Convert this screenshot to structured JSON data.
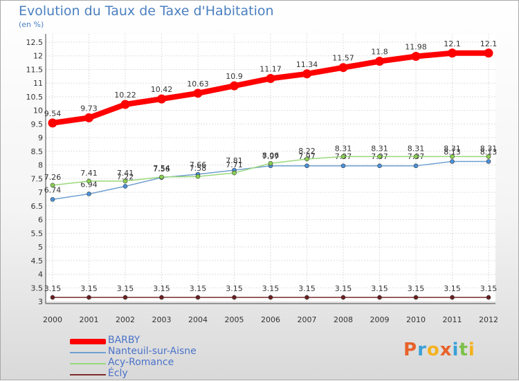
{
  "title": "Evolution du Taux de Taxe d'Habitation",
  "unit_label": "(en %)",
  "logo": {
    "letters": [
      "P",
      "r",
      "o",
      "x",
      "i",
      "t",
      "i"
    ],
    "colors": [
      "#e8622a",
      "#3aa0d8",
      "#f4b21e",
      "#e8622a",
      "#3aa0d8",
      "#7cc04a",
      "#f4b21e"
    ]
  },
  "chart_data": {
    "type": "line",
    "title": "Evolution du Taux de Taxe d'Habitation",
    "ylabel": "(en %)",
    "xlabel": "",
    "x": [
      "2000",
      "2001",
      "2002",
      "2003",
      "2004",
      "2005",
      "2006",
      "2007",
      "2008",
      "2009",
      "2010",
      "2011",
      "2012"
    ],
    "ylim": [
      3,
      12.5
    ],
    "yticks": [
      "3",
      "3.5",
      "4",
      "4.5",
      "5",
      "5.5",
      "6",
      "6.5",
      "7",
      "7.5",
      "8",
      "8.5",
      "9",
      "9.5",
      "10",
      "10.5",
      "11",
      "11.5",
      "12",
      "12.5"
    ],
    "grid": true,
    "legend_position": "bottom-left",
    "series": [
      {
        "name": "BARBY",
        "color": "#ff0000",
        "values": [
          9.54,
          9.73,
          10.22,
          10.42,
          10.63,
          10.9,
          11.17,
          11.34,
          11.57,
          11.8,
          11.98,
          12.1,
          12.1
        ],
        "labels": [
          "9.54",
          "9.73",
          "10.22",
          "10.42",
          "10.63",
          "10.9",
          "11.17",
          "11.34",
          "11.57",
          "11.8",
          "11.98",
          "12.1",
          "12.1"
        ]
      },
      {
        "name": "Nanteuil-sur-Aisne",
        "color": "#6e9fd0",
        "values": [
          6.74,
          6.94,
          7.22,
          7.54,
          7.66,
          7.81,
          7.97,
          7.97,
          7.97,
          7.97,
          7.97,
          8.13,
          8.13
        ],
        "labels": [
          "6.74",
          "6.94",
          "7.22",
          "7.54",
          "7.66",
          "7.81",
          "7.97",
          "7.97",
          "7.97",
          "7.97",
          "7.97",
          "8.13",
          "8.13"
        ]
      },
      {
        "name": "Acy-Romance",
        "color": "#99d87a",
        "values": [
          7.26,
          7.41,
          7.41,
          7.56,
          7.58,
          7.71,
          8.06,
          8.22,
          8.31,
          8.31,
          8.31,
          8.31,
          8.31
        ],
        "labels": [
          "7.26",
          "7.41",
          "7.41",
          "7.56",
          "7.58",
          "7.71",
          "8.06",
          "8.22",
          "8.31",
          "8.31",
          "8.31",
          "8.31",
          "8.31"
        ]
      },
      {
        "name": "Écly",
        "color": "#7a2a2a",
        "values": [
          3.15,
          3.15,
          3.15,
          3.15,
          3.15,
          3.15,
          3.15,
          3.15,
          3.15,
          3.15,
          3.15,
          3.15,
          3.15
        ],
        "labels": [
          "3.15",
          "3.15",
          "3.15",
          "3.15",
          "3.15",
          "3.15",
          "3.15",
          "3.15",
          "3.15",
          "3.15",
          "3.15",
          "3.15",
          "3.15"
        ]
      }
    ]
  }
}
